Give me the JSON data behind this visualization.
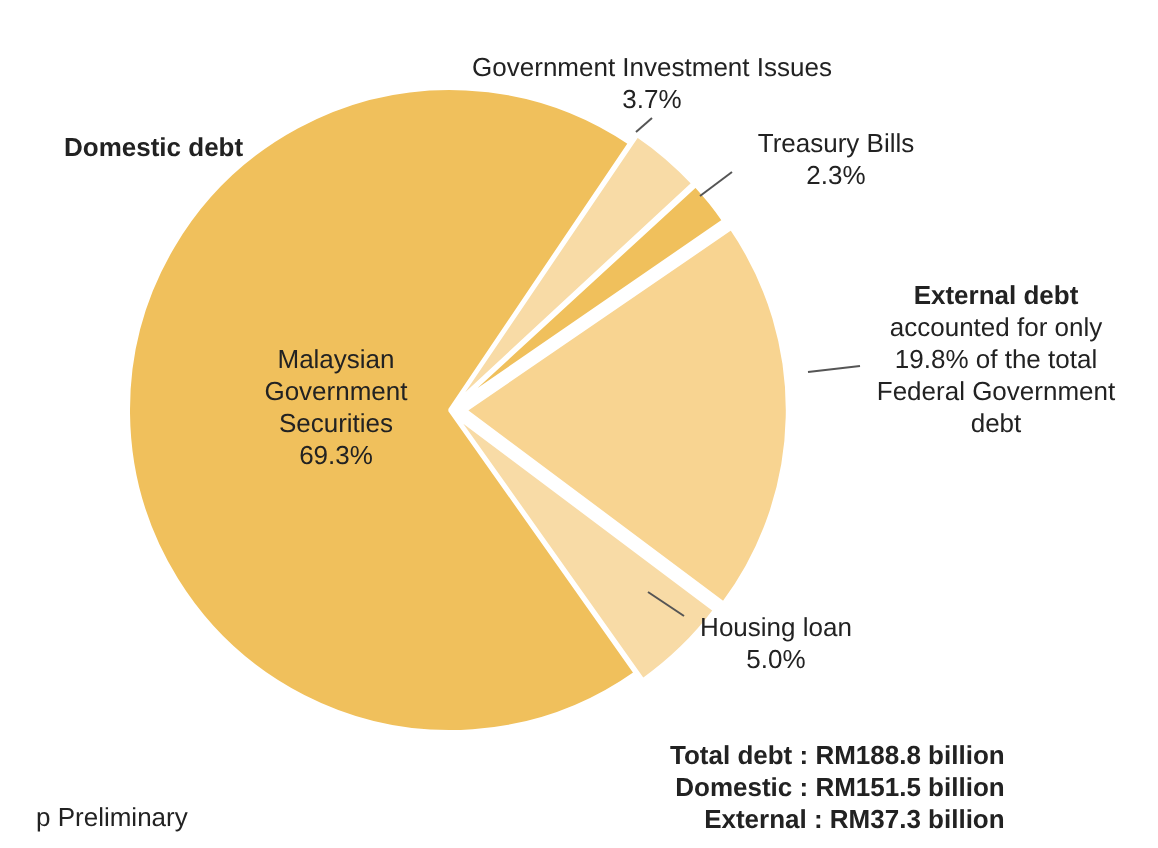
{
  "chart_data": {
    "type": "pie",
    "categories": [
      "Government Investment Issues",
      "Treasury Bills",
      "External debt",
      "Housing loan",
      "Malaysian Government Securities"
    ],
    "values": [
      3.7,
      2.3,
      19.8,
      5.0,
      69.3
    ],
    "colors": [
      "#f8dba6",
      "#f0c05c",
      "#f8d491",
      "#f8dba6",
      "#f0c05c"
    ],
    "value_labels": [
      "3.7%",
      "2.3%",
      null,
      "5.0%",
      "69.3%"
    ],
    "legend": false,
    "annotations": [
      "Domestic debt",
      "accounted for only 19.8% of the total Federal Government debt",
      "Total debt : RM188.8 billion",
      "Domestic : RM151.5 billion",
      "External : RM37.3 billion",
      "p Preliminary"
    ]
  }
}
